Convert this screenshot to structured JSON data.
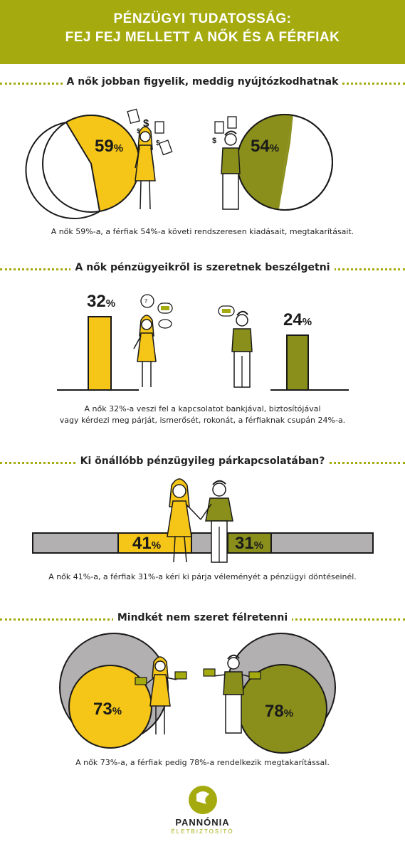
{
  "header": {
    "title_line1": "PÉNZÜGYI TUDATOSSÁG:",
    "title_line2": "FEJ FEJ MELLETT A NŐK ÉS A FÉRFIAK"
  },
  "colors": {
    "olive": "#a5ab0f",
    "yellow": "#f5c518",
    "male_green": "#8a8f1c",
    "gray": "#b3b0b1"
  },
  "section1": {
    "title": "A nők jobban figyelik, meddig nyújtózkodhatnak",
    "women_value": "59",
    "men_value": "54",
    "percent_sign": "%",
    "caption": "A nők 59%-a, a férfiak 54%-a követi rendszeresen kiadásait, megtakarításait."
  },
  "section2": {
    "title": "A nők pénzügyeikről is szeretnek beszélgetni",
    "women_value": "32",
    "men_value": "24",
    "percent_sign": "%",
    "caption_line1": "A nők 32%-a veszi fel a kapcsolatot bankjával, biztosítójával",
    "caption_line2": "vagy kérdezi meg párját, ismerősét, rokonát, a férfiaknak csupán 24%-a."
  },
  "section3": {
    "title": "Ki önállóbb pénzügyileg párkapcsolatában?",
    "women_value": "41",
    "men_value": "31",
    "percent_sign": "%",
    "caption": "A nők 41%-a, a férfiak 31%-a kéri ki párja véleményét a pénzügyi döntéseinél."
  },
  "section4": {
    "title": "Mindkét nem szeret félretenni",
    "women_value": "73",
    "men_value": "78",
    "percent_sign": "%",
    "caption": "A nők 73%-a, a férfiak pedig 78%-a rendelkezik megtakarítással."
  },
  "logo": {
    "brand": "PANNÓNIA",
    "sub": "ÉLETBIZTOSÍTÓ"
  }
}
